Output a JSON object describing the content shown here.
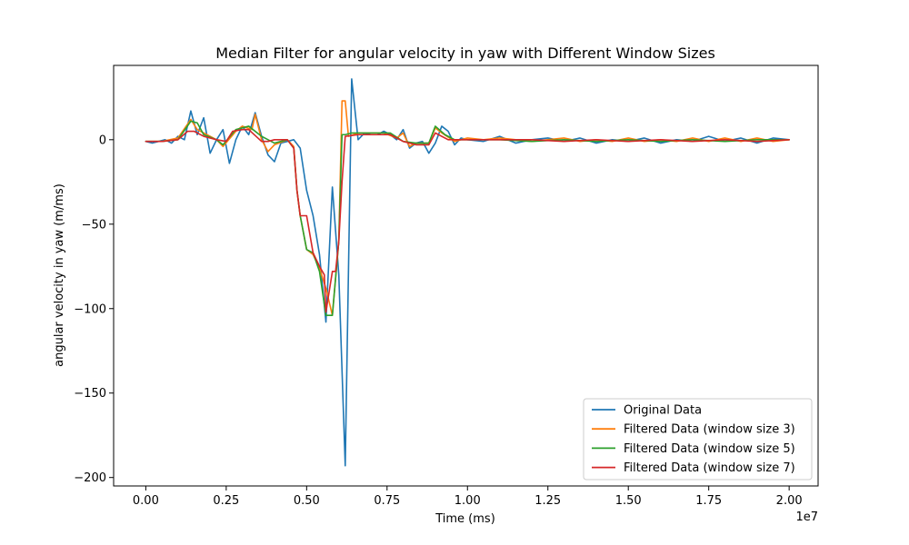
{
  "chart_data": {
    "type": "line",
    "title": "Median Filter for angular velocity in yaw with Different Window Sizes",
    "xlabel": "Time (ms)",
    "ylabel": "angular velocity in yaw (m/ms)",
    "x_offset_label": "1e7",
    "xlim": [
      -0.1,
      2.09
    ],
    "ylim": [
      -205,
      44
    ],
    "x_ticks": [
      0.0,
      0.25,
      0.5,
      0.75,
      1.0,
      1.25,
      1.5,
      1.75,
      2.0
    ],
    "x_tick_labels": [
      "0.00",
      "0.25",
      "0.50",
      "0.75",
      "1.00",
      "1.25",
      "1.50",
      "1.75",
      "2.00"
    ],
    "y_ticks": [
      0,
      -50,
      -100,
      -150,
      -200
    ],
    "y_tick_labels": [
      "0",
      "−50",
      "−100",
      "−150",
      "−200"
    ],
    "grid": false,
    "legend_position": "lower-right",
    "colors": [
      "#1f77b4",
      "#ff7f0e",
      "#2ca02c",
      "#d62728"
    ],
    "series": [
      {
        "name": "Original Data",
        "x": [
          0.0,
          0.02,
          0.04,
          0.06,
          0.08,
          0.1,
          0.12,
          0.14,
          0.16,
          0.18,
          0.2,
          0.22,
          0.24,
          0.26,
          0.28,
          0.3,
          0.32,
          0.34,
          0.36,
          0.38,
          0.4,
          0.42,
          0.44,
          0.46,
          0.48,
          0.5,
          0.52,
          0.54,
          0.56,
          0.58,
          0.6,
          0.62,
          0.64,
          0.66,
          0.68,
          0.7,
          0.72,
          0.74,
          0.76,
          0.78,
          0.8,
          0.82,
          0.84,
          0.86,
          0.88,
          0.9,
          0.92,
          0.94,
          0.96,
          0.98,
          1.0,
          1.05,
          1.1,
          1.15,
          1.2,
          1.25,
          1.3,
          1.35,
          1.4,
          1.45,
          1.5,
          1.55,
          1.6,
          1.65,
          1.7,
          1.75,
          1.8,
          1.85,
          1.9,
          1.95,
          2.0
        ],
        "values": [
          -1,
          -2,
          -1,
          0,
          -2,
          2,
          0,
          17,
          3,
          13,
          -8,
          0,
          6,
          -14,
          0,
          8,
          3,
          16,
          2,
          -9,
          -13,
          -2,
          -1,
          0,
          -5,
          -30,
          -45,
          -68,
          -108,
          -28,
          -80,
          -193,
          36,
          0,
          4,
          3,
          3,
          5,
          3,
          0,
          6,
          -5,
          -2,
          -1,
          -8,
          -2,
          8,
          5,
          -3,
          1,
          0,
          -1,
          2,
          -2,
          0,
          1,
          -1,
          1,
          -2,
          0,
          -1,
          1,
          -2,
          0,
          -1,
          2,
          -1,
          1,
          -2,
          1,
          0
        ]
      },
      {
        "name": "Filtered Data (window size 3)",
        "x": [
          0.0,
          0.05,
          0.1,
          0.14,
          0.16,
          0.18,
          0.22,
          0.24,
          0.28,
          0.3,
          0.33,
          0.34,
          0.36,
          0.38,
          0.4,
          0.44,
          0.46,
          0.47,
          0.48,
          0.5,
          0.52,
          0.54,
          0.56,
          0.58,
          0.6,
          0.61,
          0.62,
          0.63,
          0.66,
          0.7,
          0.74,
          0.78,
          0.8,
          0.82,
          0.84,
          0.88,
          0.9,
          0.92,
          0.96,
          1.0,
          1.05,
          1.1,
          1.15,
          1.2,
          1.25,
          1.3,
          1.35,
          1.4,
          1.45,
          1.5,
          1.55,
          1.6,
          1.65,
          1.7,
          1.75,
          1.8,
          1.85,
          1.9,
          1.95,
          2.0
        ],
        "values": [
          -1,
          -1,
          1,
          12,
          6,
          4,
          0,
          -4,
          5,
          8,
          6,
          15,
          0,
          -7,
          -3,
          0,
          -4,
          -30,
          -45,
          -65,
          -68,
          -76,
          -88,
          -104,
          -60,
          23,
          23,
          2,
          4,
          4,
          4,
          1,
          4,
          -4,
          -2,
          -2,
          7,
          4,
          -1,
          1,
          0,
          1,
          0,
          -1,
          0,
          1,
          -1,
          0,
          -1,
          1,
          -1,
          0,
          -1,
          1,
          -1,
          1,
          -1,
          1,
          -1,
          0
        ]
      },
      {
        "name": "Filtered Data (window size 5)",
        "x": [
          0.0,
          0.05,
          0.1,
          0.14,
          0.16,
          0.18,
          0.22,
          0.24,
          0.28,
          0.32,
          0.36,
          0.4,
          0.44,
          0.46,
          0.47,
          0.48,
          0.5,
          0.52,
          0.54,
          0.56,
          0.58,
          0.6,
          0.61,
          0.62,
          0.64,
          0.7,
          0.76,
          0.8,
          0.84,
          0.88,
          0.9,
          0.93,
          0.96,
          1.0,
          1.1,
          1.2,
          1.3,
          1.4,
          1.5,
          1.6,
          1.7,
          1.8,
          1.9,
          2.0
        ],
        "values": [
          -1,
          -1,
          0,
          11,
          10,
          3,
          0,
          -3,
          6,
          8,
          2,
          -2,
          0,
          -5,
          -30,
          -45,
          -65,
          -67,
          -78,
          -104,
          -104,
          -60,
          3,
          3,
          4,
          4,
          4,
          -1,
          -2,
          -2,
          8,
          3,
          0,
          0,
          0,
          -1,
          0,
          -1,
          0,
          -1,
          0,
          -1,
          0,
          0
        ]
      },
      {
        "name": "Filtered Data (window size 7)",
        "x": [
          0.0,
          0.05,
          0.1,
          0.13,
          0.15,
          0.18,
          0.22,
          0.25,
          0.27,
          0.3,
          0.32,
          0.36,
          0.38,
          0.4,
          0.42,
          0.44,
          0.46,
          0.47,
          0.48,
          0.5,
          0.52,
          0.54,
          0.555,
          0.56,
          0.58,
          0.59,
          0.6,
          0.61,
          0.62,
          0.66,
          0.7,
          0.76,
          0.8,
          0.84,
          0.88,
          0.9,
          0.94,
          1.0,
          1.1,
          1.2,
          1.3,
          1.4,
          1.5,
          1.6,
          1.7,
          1.8,
          1.9,
          2.0
        ],
        "values": [
          -1,
          -1,
          0,
          5,
          5,
          2,
          0,
          -1,
          5,
          6,
          6,
          -1,
          -1,
          0,
          0,
          0,
          -5,
          -30,
          -45,
          -45,
          -67,
          -75,
          -80,
          -102,
          -78,
          -78,
          -60,
          -25,
          2,
          3,
          3,
          3,
          -1,
          -3,
          -3,
          4,
          0,
          0,
          0,
          0,
          -1,
          0,
          -1,
          0,
          -1,
          0,
          -1,
          0
        ]
      }
    ]
  }
}
